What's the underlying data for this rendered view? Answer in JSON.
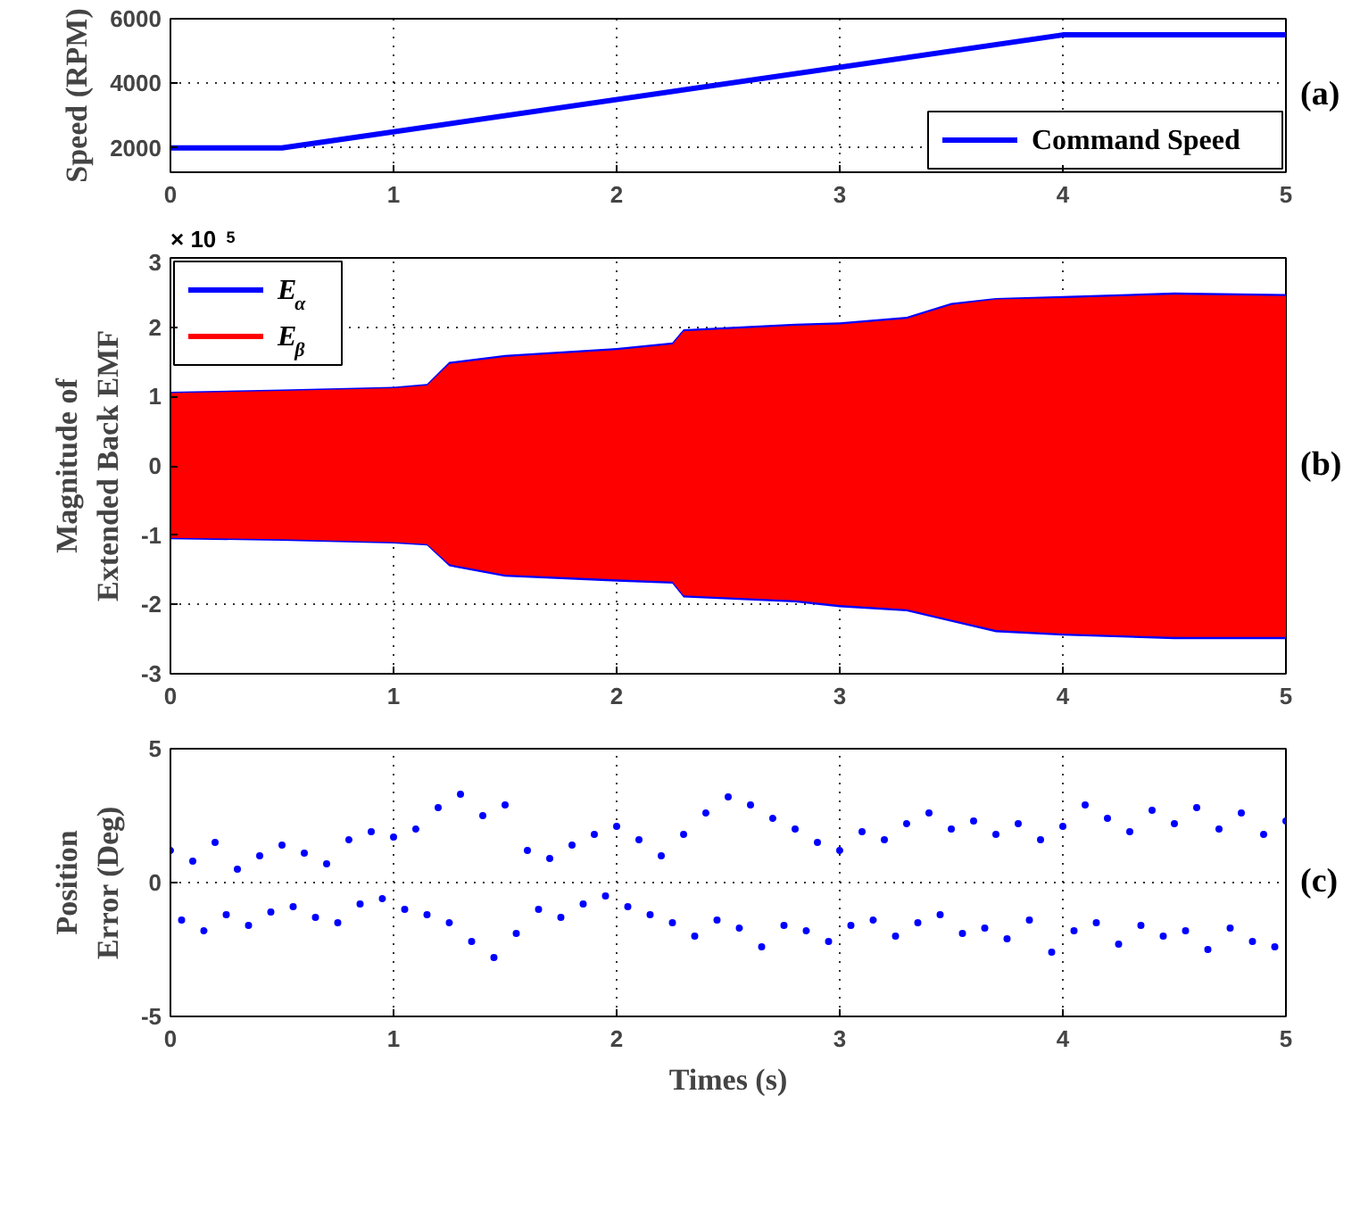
{
  "chart_data": [
    {
      "type": "line",
      "ylabel": "Speed (RPM)",
      "xlim": [
        0,
        5
      ],
      "ylim": [
        1250,
        6000
      ],
      "xticks": [
        0,
        1,
        2,
        3,
        4,
        5
      ],
      "yticks": [
        2000,
        4000,
        6000
      ],
      "grid": true,
      "legend": "bottom right",
      "annotations": [
        "(a)"
      ],
      "series": [
        {
          "name": "Command Speed",
          "color": "#0000ff",
          "x": [
            0,
            0.5,
            4,
            5
          ],
          "values": [
            2000,
            2000,
            5500,
            5500
          ]
        }
      ]
    },
    {
      "type": "line",
      "ylabel": "Magnitude of\nExtended Back EMF",
      "xlim": [
        0,
        5
      ],
      "ylim": [
        -3,
        3
      ],
      "xticks": [
        0,
        1,
        2,
        3,
        4,
        5
      ],
      "yticks": [
        -3,
        -2,
        -1,
        0,
        1,
        2,
        3
      ],
      "grid": true,
      "legend": "top left",
      "annotations": [
        "(b)",
        "× 10$^{5}$"
      ],
      "series": [
        {
          "name": "E$_{α}$",
          "color": "#0000ff",
          "x": [
            0,
            0.5,
            1.0,
            1.15,
            1.25,
            1.5,
            2.0,
            2.25,
            2.3,
            2.8,
            3.0,
            3.3,
            3.5,
            3.7,
            4.0,
            4.5,
            5.0
          ],
          "values": [
            null,
            null,
            null,
            null,
            null,
            null,
            null,
            null,
            null,
            null,
            null,
            null,
            null,
            null,
            null,
            null,
            null
          ],
          "upper": [
            1.07,
            1.1,
            1.14,
            1.18,
            1.5,
            1.6,
            1.7,
            1.78,
            1.97,
            2.05,
            2.07,
            2.15,
            2.35,
            2.42,
            2.45,
            2.5,
            2.48
          ],
          "lower": [
            -1.06,
            -1.08,
            -1.12,
            -1.15,
            -1.45,
            -1.6,
            -1.67,
            -1.7,
            -1.9,
            -1.97,
            -2.04,
            -2.1,
            -2.25,
            -2.4,
            -2.45,
            -2.5,
            -2.5
          ]
        },
        {
          "name": "E$_{β}$",
          "color": "#ff0000",
          "x": [
            0,
            0.5,
            1.0,
            1.15,
            1.25,
            1.5,
            2.0,
            2.25,
            2.3,
            2.8,
            3.0,
            3.3,
            3.5,
            3.7,
            4.0,
            4.5,
            5.0
          ],
          "values": [
            null,
            null,
            null,
            null,
            null,
            null,
            null,
            null,
            null,
            null,
            null,
            null,
            null,
            null,
            null,
            null,
            null
          ],
          "upper": [
            1.05,
            1.08,
            1.12,
            1.16,
            1.47,
            1.57,
            1.67,
            1.75,
            1.94,
            2.02,
            2.04,
            2.12,
            2.32,
            2.4,
            2.42,
            2.47,
            2.45
          ],
          "lower": [
            -1.04,
            -1.06,
            -1.1,
            -1.13,
            -1.42,
            -1.57,
            -1.64,
            -1.67,
            -1.87,
            -1.94,
            -2.01,
            -2.07,
            -2.22,
            -2.37,
            -2.42,
            -2.47,
            -2.47
          ]
        }
      ]
    },
    {
      "type": "scatter",
      "xlabel": "Times (s)",
      "ylabel": "Position\nError (Deg)",
      "xlim": [
        0,
        5
      ],
      "ylim": [
        -5,
        5
      ],
      "xticks": [
        0,
        1,
        2,
        3,
        4,
        5
      ],
      "yticks": [
        -5,
        0,
        5
      ],
      "grid": true,
      "marker": "circle",
      "annotations": [
        "(c)"
      ],
      "series": [
        {
          "color": "#0000ff",
          "x": [
            0,
            0.05,
            0.1,
            0.15,
            0.2,
            0.25,
            0.3,
            0.35,
            0.4,
            0.45,
            0.5,
            0.55,
            0.6,
            0.65,
            0.7,
            0.75,
            0.8,
            0.85,
            0.9,
            0.95,
            1.0,
            1.05,
            1.1,
            1.15,
            1.2,
            1.25,
            1.3,
            1.35,
            1.4,
            1.45,
            1.5,
            1.55,
            1.6,
            1.65,
            1.7,
            1.75,
            1.8,
            1.85,
            1.9,
            1.95,
            2.0,
            2.05,
            2.1,
            2.15,
            2.2,
            2.25,
            2.3,
            2.35,
            2.4,
            2.45,
            2.5,
            2.55,
            2.6,
            2.65,
            2.7,
            2.75,
            2.8,
            2.85,
            2.9,
            2.95,
            3.0,
            3.05,
            3.1,
            3.15,
            3.2,
            3.25,
            3.3,
            3.35,
            3.4,
            3.45,
            3.5,
            3.55,
            3.6,
            3.65,
            3.7,
            3.75,
            3.8,
            3.85,
            3.9,
            3.95,
            4.0,
            4.05,
            4.1,
            4.15,
            4.2,
            4.25,
            4.3,
            4.35,
            4.4,
            4.45,
            4.5,
            4.55,
            4.6,
            4.65,
            4.7,
            4.75,
            4.8,
            4.85,
            4.9,
            4.95,
            5.0
          ],
          "values": [
            1.2,
            -1.4,
            0.8,
            -1.8,
            1.5,
            -1.2,
            0.5,
            -1.6,
            1.0,
            -1.1,
            1.4,
            -0.9,
            1.1,
            -1.3,
            0.7,
            -1.5,
            1.6,
            -0.8,
            1.9,
            -0.6,
            1.7,
            -1.0,
            2.0,
            -1.2,
            2.8,
            -1.5,
            3.3,
            -2.2,
            2.5,
            -2.8,
            2.9,
            -1.9,
            1.2,
            -1.0,
            0.9,
            -1.3,
            1.4,
            -0.8,
            1.8,
            -0.5,
            2.1,
            -0.9,
            1.6,
            -1.2,
            1.0,
            -1.5,
            1.8,
            -2.0,
            2.6,
            -1.4,
            3.2,
            -1.7,
            2.9,
            -2.4,
            2.4,
            -1.6,
            2.0,
            -1.8,
            1.5,
            -2.2,
            1.2,
            -1.6,
            1.9,
            -1.4,
            1.6,
            -2.0,
            2.2,
            -1.5,
            2.6,
            -1.2,
            2.0,
            -1.9,
            2.3,
            -1.7,
            1.8,
            -2.1,
            2.2,
            -1.4,
            1.6,
            -2.6,
            2.1,
            -1.8,
            2.9,
            -1.5,
            2.4,
            -2.3,
            1.9,
            -1.6,
            2.7,
            -2.0,
            2.2,
            -1.8,
            2.8,
            -2.5,
            2.0,
            -1.7,
            2.6,
            -2.2,
            1.8,
            -2.4,
            2.3
          ]
        }
      ]
    }
  ]
}
